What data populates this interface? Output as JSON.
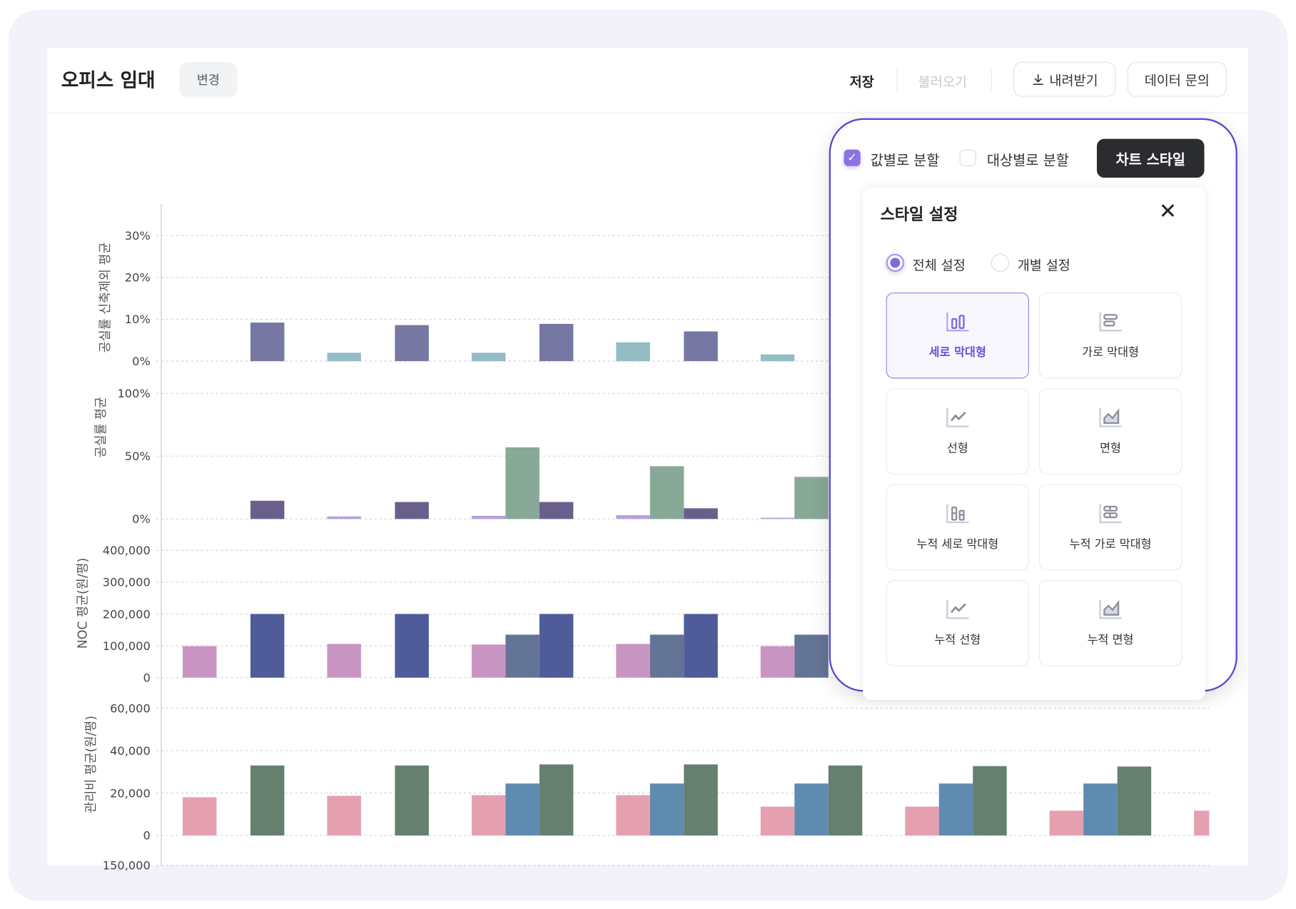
{
  "header": {
    "title": "오피스 임대",
    "change_label": "변경",
    "save_label": "저장",
    "load_label": "불러오기",
    "download_label": "내려받기",
    "inquiry_label": "데이터 문의"
  },
  "panel": {
    "split_by_value": {
      "label": "값별로 분할",
      "checked": true
    },
    "split_by_target": {
      "label": "대상별로 분할",
      "checked": false
    },
    "chart_style_label": "차트 스타일",
    "style_settings": {
      "title": "스타일 설정",
      "radio_all": {
        "label": "전체 설정",
        "selected": true
      },
      "radio_individual": {
        "label": "개별 설정",
        "selected": false
      },
      "types": [
        {
          "label": "세로 막대형",
          "icon": "vertical-bar-icon",
          "selected": true
        },
        {
          "label": "가로 막대형",
          "icon": "horizontal-bar-icon",
          "selected": false
        },
        {
          "label": "선형",
          "icon": "line-chart-icon",
          "selected": false
        },
        {
          "label": "면형",
          "icon": "area-chart-icon",
          "selected": false
        },
        {
          "label": "누적 세로 막대형",
          "icon": "stacked-vertical-bar-icon",
          "selected": false
        },
        {
          "label": "누적 가로 막대형",
          "icon": "stacked-horizontal-bar-icon",
          "selected": false
        },
        {
          "label": "누적 선형",
          "icon": "stacked-line-icon",
          "selected": false
        },
        {
          "label": "누적 면형",
          "icon": "stacked-area-icon",
          "selected": false
        }
      ]
    }
  },
  "chart_data": [
    {
      "type": "bar",
      "ylabel": "공실률 신축제외 평균",
      "ylim": [
        0,
        30
      ],
      "ticks": [
        "0%",
        "10%",
        "20%",
        "30%"
      ],
      "tick_values": [
        0,
        10,
        20,
        30
      ],
      "grid": true,
      "series": [
        {
          "color": "#94bcc5",
          "values": [
            null,
            2,
            2,
            4.5,
            1.6,
            null,
            null,
            null
          ]
        },
        {
          "color": "#88a898",
          "values": [
            null,
            null,
            null,
            null,
            null,
            null,
            null,
            null
          ]
        },
        {
          "color": "#7677a3",
          "values": [
            9.2,
            8.6,
            8.9,
            7.1,
            null,
            null,
            null,
            null
          ]
        }
      ]
    },
    {
      "type": "bar",
      "ylabel": "공실률 평균",
      "ylim": [
        0,
        100
      ],
      "ticks": [
        "0%",
        "50%",
        "100%"
      ],
      "tick_values": [
        0,
        50,
        100
      ],
      "grid": true,
      "series": [
        {
          "color": "#b9a0d8",
          "values": [
            null,
            2,
            2.5,
            3,
            1,
            null,
            null,
            null
          ]
        },
        {
          "color": "#88a898",
          "values": [
            null,
            null,
            57,
            42,
            33.5,
            null,
            null,
            null
          ]
        },
        {
          "color": "#6a5f8c",
          "values": [
            14.5,
            13.5,
            13.5,
            8.5,
            null,
            null,
            null,
            null
          ]
        }
      ]
    },
    {
      "type": "bar",
      "ylabel": "NOC 평균(원/평)",
      "ylim": [
        0,
        400000
      ],
      "ticks": [
        "0",
        "100,000",
        "200,000",
        "300,000",
        "400,000"
      ],
      "tick_values": [
        0,
        100000,
        200000,
        300000,
        400000
      ],
      "grid": true,
      "series": [
        {
          "color": "#c895c2",
          "values": [
            99000,
            106000,
            104000,
            106000,
            99000,
            null,
            null,
            null
          ]
        },
        {
          "color": "#647497",
          "values": [
            null,
            null,
            135000,
            135000,
            135000,
            null,
            null,
            null
          ]
        },
        {
          "color": "#505b99",
          "values": [
            200000,
            200000,
            200000,
            200000,
            null,
            null,
            null,
            null
          ]
        }
      ]
    },
    {
      "type": "bar",
      "ylabel": "관리비 평균(원/평)",
      "ylim": [
        0,
        60000
      ],
      "ticks": [
        "0",
        "20,000",
        "40,000",
        "60,000"
      ],
      "tick_values": [
        0,
        20000,
        40000,
        60000
      ],
      "grid": true,
      "series": [
        {
          "color": "#e5a0b0",
          "values": [
            18000,
            18700,
            19000,
            19000,
            13600,
            13600,
            11700,
            11700
          ]
        },
        {
          "color": "#5f8bb0",
          "values": [
            null,
            null,
            24500,
            24500,
            24500,
            24500,
            24500,
            null
          ]
        },
        {
          "color": "#668070",
          "values": [
            33000,
            33000,
            33500,
            33500,
            33000,
            32700,
            32500,
            null
          ]
        }
      ]
    },
    {
      "type": "bar",
      "ylabel": "",
      "ticks": [
        "150,000"
      ],
      "tick_values": [
        150000
      ],
      "partial": true,
      "series": []
    }
  ]
}
